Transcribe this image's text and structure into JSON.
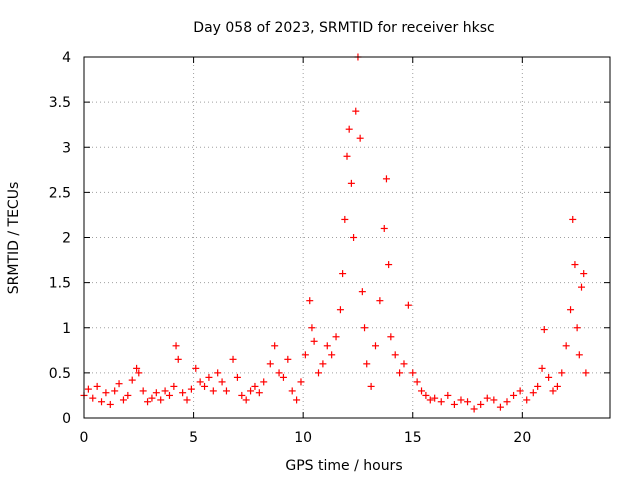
{
  "chart_data": {
    "type": "scatter",
    "title": "Day 058 of 2023, SRMTID for receiver hksc",
    "xlabel": "GPS time / hours",
    "ylabel": "SRMTID / TECUs",
    "xlim": [
      0,
      24
    ],
    "ylim": [
      0,
      4
    ],
    "xticks": [
      0,
      5,
      10,
      15,
      20
    ],
    "xtick_labels": [
      "0",
      "5",
      "10",
      "15",
      "20"
    ],
    "yticks": [
      0,
      0.5,
      1,
      1.5,
      2,
      2.5,
      3,
      3.5,
      4
    ],
    "ytick_labels": [
      "0",
      "0.5",
      "1",
      "1.5",
      "2",
      "2.5",
      "3",
      "3.5",
      "4"
    ],
    "grid": true,
    "marker": "+",
    "color": "#ff0000",
    "series": [
      {
        "name": "SRMTID",
        "points": [
          [
            0.0,
            0.25
          ],
          [
            0.2,
            0.32
          ],
          [
            0.4,
            0.22
          ],
          [
            0.6,
            0.35
          ],
          [
            0.8,
            0.18
          ],
          [
            1.0,
            0.28
          ],
          [
            1.2,
            0.15
          ],
          [
            1.4,
            0.3
          ],
          [
            1.6,
            0.38
          ],
          [
            1.8,
            0.2
          ],
          [
            2.0,
            0.25
          ],
          [
            2.2,
            0.42
          ],
          [
            2.4,
            0.55
          ],
          [
            2.5,
            0.5
          ],
          [
            2.7,
            0.3
          ],
          [
            2.9,
            0.18
          ],
          [
            3.1,
            0.22
          ],
          [
            3.3,
            0.28
          ],
          [
            3.5,
            0.2
          ],
          [
            3.7,
            0.3
          ],
          [
            3.9,
            0.25
          ],
          [
            4.1,
            0.35
          ],
          [
            4.2,
            0.8
          ],
          [
            4.3,
            0.65
          ],
          [
            4.5,
            0.28
          ],
          [
            4.7,
            0.2
          ],
          [
            4.9,
            0.32
          ],
          [
            5.1,
            0.55
          ],
          [
            5.3,
            0.4
          ],
          [
            5.5,
            0.35
          ],
          [
            5.7,
            0.45
          ],
          [
            5.9,
            0.3
          ],
          [
            6.1,
            0.5
          ],
          [
            6.3,
            0.4
          ],
          [
            6.5,
            0.3
          ],
          [
            6.8,
            0.65
          ],
          [
            7.0,
            0.45
          ],
          [
            7.2,
            0.25
          ],
          [
            7.4,
            0.2
          ],
          [
            7.6,
            0.3
          ],
          [
            7.8,
            0.35
          ],
          [
            8.0,
            0.28
          ],
          [
            8.2,
            0.4
          ],
          [
            8.5,
            0.6
          ],
          [
            8.7,
            0.8
          ],
          [
            8.9,
            0.5
          ],
          [
            9.1,
            0.45
          ],
          [
            9.3,
            0.65
          ],
          [
            9.5,
            0.3
          ],
          [
            9.7,
            0.2
          ],
          [
            9.9,
            0.4
          ],
          [
            10.1,
            0.7
          ],
          [
            10.3,
            1.3
          ],
          [
            10.4,
            1.0
          ],
          [
            10.5,
            0.85
          ],
          [
            10.7,
            0.5
          ],
          [
            10.9,
            0.6
          ],
          [
            11.1,
            0.8
          ],
          [
            11.3,
            0.7
          ],
          [
            11.5,
            0.9
          ],
          [
            11.7,
            1.2
          ],
          [
            11.8,
            1.6
          ],
          [
            11.9,
            2.2
          ],
          [
            12.0,
            2.9
          ],
          [
            12.1,
            3.2
          ],
          [
            12.2,
            2.6
          ],
          [
            12.3,
            2.0
          ],
          [
            12.4,
            3.4
          ],
          [
            12.5,
            4.0
          ],
          [
            12.6,
            3.1
          ],
          [
            12.7,
            1.4
          ],
          [
            12.8,
            1.0
          ],
          [
            12.9,
            0.6
          ],
          [
            13.1,
            0.35
          ],
          [
            13.3,
            0.8
          ],
          [
            13.5,
            1.3
          ],
          [
            13.7,
            2.1
          ],
          [
            13.8,
            2.65
          ],
          [
            13.9,
            1.7
          ],
          [
            14.0,
            0.9
          ],
          [
            14.2,
            0.7
          ],
          [
            14.4,
            0.5
          ],
          [
            14.6,
            0.6
          ],
          [
            14.8,
            1.25
          ],
          [
            15.0,
            0.5
          ],
          [
            15.2,
            0.4
          ],
          [
            15.4,
            0.3
          ],
          [
            15.6,
            0.25
          ],
          [
            15.8,
            0.2
          ],
          [
            16.0,
            0.22
          ],
          [
            16.3,
            0.18
          ],
          [
            16.6,
            0.25
          ],
          [
            16.9,
            0.15
          ],
          [
            17.2,
            0.2
          ],
          [
            17.5,
            0.18
          ],
          [
            17.8,
            0.1
          ],
          [
            18.1,
            0.15
          ],
          [
            18.4,
            0.22
          ],
          [
            18.7,
            0.2
          ],
          [
            19.0,
            0.12
          ],
          [
            19.3,
            0.18
          ],
          [
            19.6,
            0.25
          ],
          [
            19.9,
            0.3
          ],
          [
            20.2,
            0.2
          ],
          [
            20.5,
            0.28
          ],
          [
            20.7,
            0.35
          ],
          [
            20.9,
            0.55
          ],
          [
            21.0,
            0.98
          ],
          [
            21.2,
            0.45
          ],
          [
            21.4,
            0.3
          ],
          [
            21.6,
            0.35
          ],
          [
            21.8,
            0.5
          ],
          [
            22.0,
            0.8
          ],
          [
            22.2,
            1.2
          ],
          [
            22.3,
            2.2
          ],
          [
            22.4,
            1.7
          ],
          [
            22.5,
            1.0
          ],
          [
            22.6,
            0.7
          ],
          [
            22.7,
            1.45
          ],
          [
            22.8,
            1.6
          ],
          [
            22.9,
            0.5
          ]
        ]
      }
    ]
  }
}
